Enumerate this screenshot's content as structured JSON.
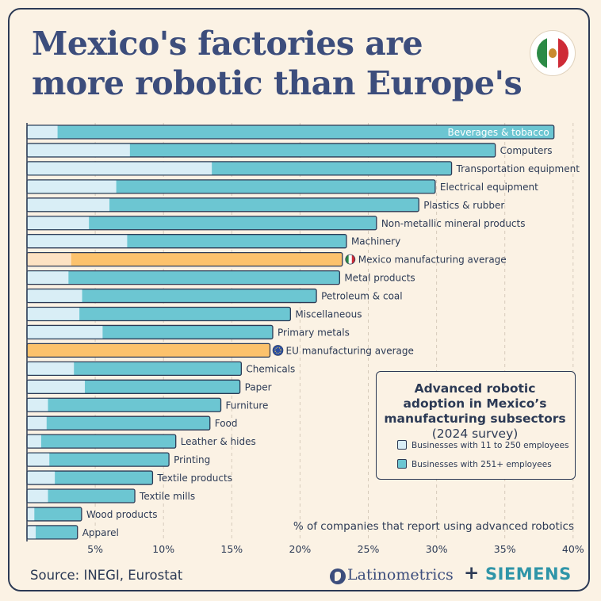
{
  "title": "Mexico's factories are more robotic than Europe's",
  "flag_icon": "mexico-flag-icon",
  "source": "Source: INEGI, Eurostat",
  "brand": {
    "latinometrics": "Latinometrics",
    "plus": "+",
    "siemens": "SIEMENS",
    "logo_icon": "latinometrics-logo-icon"
  },
  "legend": {
    "title_bold": "Advanced robotic adoption in Mexico’s manufacturing subsectors",
    "title_normal": "(2024 survey)",
    "items": [
      {
        "label": "Businesses with 11 to 250 employees",
        "color": "#d9eef6"
      },
      {
        "label": "Businesses with 251+ employees",
        "color": "#6cc6d2"
      }
    ]
  },
  "chart_data": {
    "type": "bar",
    "orientation": "horizontal",
    "layering": "overlapped",
    "xlabel": "% of companies that report using advanced robotics",
    "xlim": [
      0,
      40
    ],
    "xticks": [
      5,
      10,
      15,
      20,
      25,
      30,
      35,
      40
    ],
    "xtick_labels": [
      "5%",
      "10%",
      "15%",
      "20%",
      "25%",
      "30%",
      "35%",
      "40%"
    ],
    "grid": "vertical dashed",
    "colors": {
      "small": "#d9eef6",
      "large": "#6cc6d2",
      "mexico_small": "#fde2c3",
      "mexico_large": "#fcc26c",
      "eu": "#fcc26c",
      "outline": "#2c3a55"
    },
    "categories": [
      "Beverages & tobacco",
      "Computers",
      "Transportation equipment",
      "Electrical equipment",
      "Plastics & rubber",
      "Non-metallic mineral products",
      "Machinery",
      "Mexico manufacturing average",
      "Metal products",
      "Petroleum & coal",
      "Miscellaneous",
      "Primary metals",
      "EU manufacturing average",
      "Chemicals",
      "Paper",
      "Furniture",
      "Food",
      "Leather & hides",
      "Printing",
      "Textile products",
      "Textile mills",
      "Wood products",
      "Apparel"
    ],
    "series": [
      {
        "name": "Businesses with 11 to 250 employees",
        "values": [
          2.2,
          7.5,
          13.5,
          6.5,
          6.0,
          4.5,
          7.3,
          3.2,
          3.0,
          4.0,
          3.8,
          5.5,
          null,
          3.4,
          4.2,
          1.5,
          1.4,
          1.0,
          1.6,
          2.0,
          1.5,
          0.5,
          0.6
        ]
      },
      {
        "name": "Businesses with 251+ employees",
        "values": [
          38.6,
          34.3,
          31.1,
          29.9,
          28.7,
          25.6,
          23.4,
          23.1,
          22.9,
          21.2,
          19.3,
          18.0,
          17.8,
          15.7,
          15.6,
          14.2,
          13.4,
          10.9,
          10.4,
          9.2,
          7.9,
          4.0,
          3.7
        ]
      }
    ],
    "special": {
      "Mexico manufacturing average": {
        "icon": "mexico-flag-icon",
        "style": "mexico"
      },
      "EU manufacturing average": {
        "icon": "eu-flag-icon",
        "style": "eu"
      }
    },
    "inside_label": "Beverages & tobacco"
  }
}
